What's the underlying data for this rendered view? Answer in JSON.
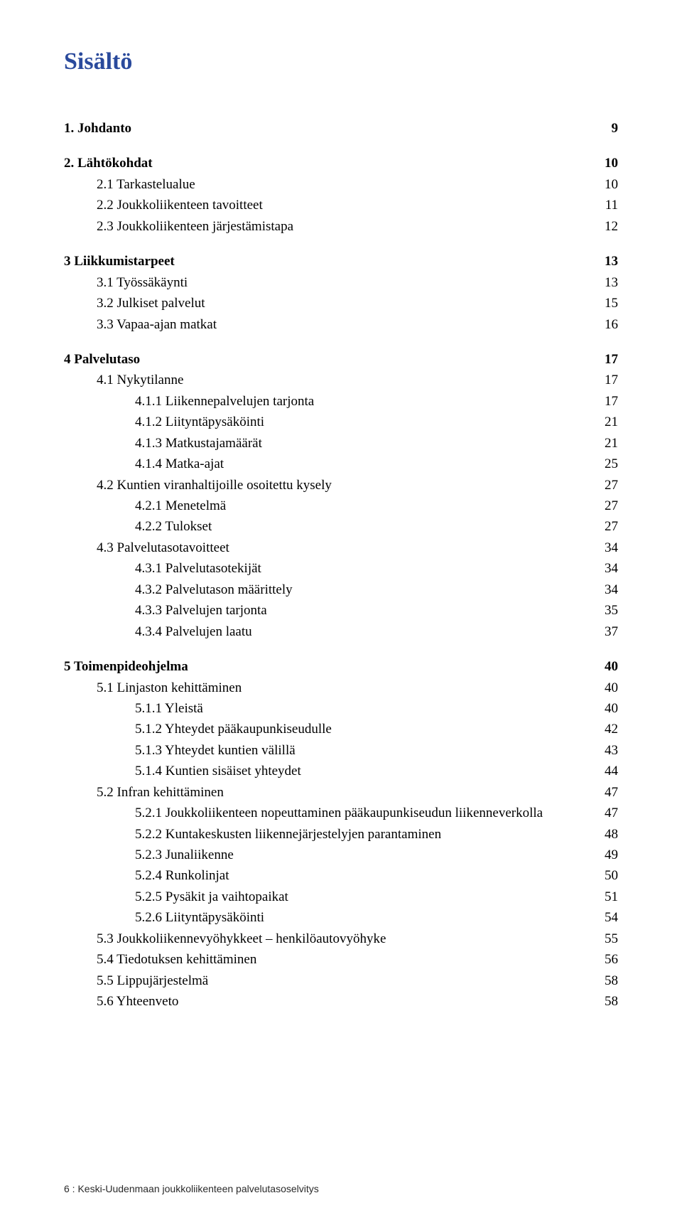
{
  "title": "Sisältö",
  "footer": "6  :  Keski-Uudenmaan joukkoliikenteen palvelutasoselvitys",
  "text_color": "#000000",
  "title_color": "#2a4a9c",
  "background_color": "#ffffff",
  "toc": [
    {
      "type": "row",
      "level": 0,
      "bold": true,
      "label": "1.   Johdanto",
      "page": "9"
    },
    {
      "type": "gap"
    },
    {
      "type": "row",
      "level": 0,
      "bold": true,
      "label": "2.   Lähtökohdat",
      "page": "10"
    },
    {
      "type": "row",
      "level": 1,
      "bold": false,
      "label": "2.1  Tarkastelualue",
      "page": "10"
    },
    {
      "type": "row",
      "level": 1,
      "bold": false,
      "label": "2.2   Joukkoliikenteen tavoitteet",
      "page": "11"
    },
    {
      "type": "row",
      "level": 1,
      "bold": false,
      "label": "2.3  Joukkoliikenteen järjestämistapa",
      "page": "12"
    },
    {
      "type": "gap"
    },
    {
      "type": "row",
      "level": 0,
      "bold": true,
      "label": "3    Liikkumistarpeet",
      "page": "13"
    },
    {
      "type": "row",
      "level": 1,
      "bold": false,
      "label": "3.1  Työssäkäynti",
      "page": "13"
    },
    {
      "type": "row",
      "level": 1,
      "bold": false,
      "label": "3.2  Julkiset palvelut",
      "page": "15"
    },
    {
      "type": "row",
      "level": 1,
      "bold": false,
      "label": "3.3  Vapaa-ajan matkat",
      "page": "16"
    },
    {
      "type": "gap"
    },
    {
      "type": "row",
      "level": 0,
      "bold": true,
      "label": "4    Palvelutaso",
      "page": "17"
    },
    {
      "type": "row",
      "level": 1,
      "bold": false,
      "label": "4.1  Nykytilanne",
      "page": "17"
    },
    {
      "type": "row",
      "level": 2,
      "bold": false,
      "label": "4.1.1  Liikennepalvelujen tarjonta",
      "page": "17"
    },
    {
      "type": "row",
      "level": 2,
      "bold": false,
      "label": "4.1.2  Liityntäpysäköinti",
      "page": "21"
    },
    {
      "type": "row",
      "level": 2,
      "bold": false,
      "label": "4.1.3  Matkustajamäärät",
      "page": "21"
    },
    {
      "type": "row",
      "level": 2,
      "bold": false,
      "label": "4.1.4  Matka-ajat",
      "page": "25"
    },
    {
      "type": "row",
      "level": 1,
      "bold": false,
      "label": "4.2  Kuntien viranhaltijoille osoitettu kysely",
      "page": "27"
    },
    {
      "type": "row",
      "level": 2,
      "bold": false,
      "label": "4.2.1  Menetelmä",
      "page": "27"
    },
    {
      "type": "row",
      "level": 2,
      "bold": false,
      "label": "4.2.2  Tulokset",
      "page": "27"
    },
    {
      "type": "row",
      "level": 1,
      "bold": false,
      "label": "4.3  Palvelutasotavoitteet",
      "page": "34"
    },
    {
      "type": "row",
      "level": 2,
      "bold": false,
      "label": "4.3.1  Palvelutasotekijät",
      "page": "34"
    },
    {
      "type": "row",
      "level": 2,
      "bold": false,
      "label": "4.3.2  Palvelutason määrittely",
      "page": "34"
    },
    {
      "type": "row",
      "level": 2,
      "bold": false,
      "label": "4.3.3  Palvelujen tarjonta",
      "page": "35"
    },
    {
      "type": "row",
      "level": 2,
      "bold": false,
      "label": "4.3.4  Palvelujen laatu",
      "page": "37"
    },
    {
      "type": "gap"
    },
    {
      "type": "row",
      "level": 0,
      "bold": true,
      "label": "5    Toimenpideohjelma",
      "page": "40"
    },
    {
      "type": "row",
      "level": 1,
      "bold": false,
      "label": "5.1  Linjaston kehittäminen",
      "page": "40"
    },
    {
      "type": "row",
      "level": 2,
      "bold": false,
      "label": "5.1.1  Yleistä",
      "page": "40"
    },
    {
      "type": "row",
      "level": 2,
      "bold": false,
      "label": "5.1.2  Yhteydet pääkaupunkiseudulle",
      "page": "42"
    },
    {
      "type": "row",
      "level": 2,
      "bold": false,
      "label": "5.1.3  Yhteydet kuntien välillä",
      "page": "43"
    },
    {
      "type": "row",
      "level": 2,
      "bold": false,
      "label": "5.1.4  Kuntien sisäiset yhteydet",
      "page": "44"
    },
    {
      "type": "row",
      "level": 1,
      "bold": false,
      "label": "5.2  Infran kehittäminen",
      "page": "47"
    },
    {
      "type": "row",
      "level": 2,
      "bold": false,
      "label": "5.2.1  Joukkoliikenteen nopeuttaminen pääkaupunkiseudun liikenneverkolla",
      "page": "47"
    },
    {
      "type": "row",
      "level": 2,
      "bold": false,
      "label": "5.2.2  Kuntakeskusten liikennejärjestelyjen parantaminen",
      "page": "48"
    },
    {
      "type": "row",
      "level": 2,
      "bold": false,
      "label": "5.2.3  Junaliikenne",
      "page": "49"
    },
    {
      "type": "row",
      "level": 2,
      "bold": false,
      "label": "5.2.4  Runkolinjat",
      "page": "50"
    },
    {
      "type": "row",
      "level": 2,
      "bold": false,
      "label": "5.2.5  Pysäkit ja vaihtopaikat",
      "page": "51"
    },
    {
      "type": "row",
      "level": 2,
      "bold": false,
      "label": "5.2.6  Liityntäpysäköinti",
      "page": "54"
    },
    {
      "type": "row",
      "level": 1,
      "bold": false,
      "label": "5.3  Joukkoliikennevyöhykkeet – henkilöautovyöhyke",
      "page": "55"
    },
    {
      "type": "row",
      "level": 1,
      "bold": false,
      "label": "5.4  Tiedotuksen kehittäminen",
      "page": "56"
    },
    {
      "type": "row",
      "level": 1,
      "bold": false,
      "label": "5.5  Lippujärjestelmä",
      "page": "58"
    },
    {
      "type": "row",
      "level": 1,
      "bold": false,
      "label": "5.6  Yhteenveto",
      "page": "58"
    }
  ]
}
